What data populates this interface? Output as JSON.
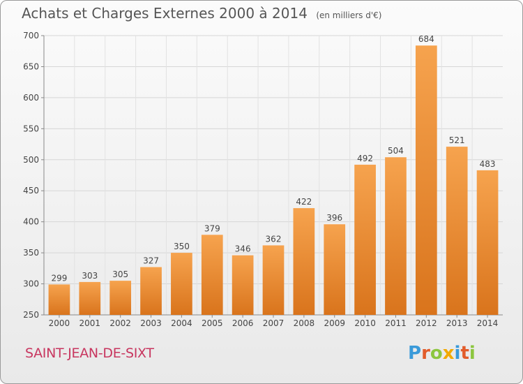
{
  "header": {
    "title": "Achats et Charges Externes 2000 à 2014",
    "unit": "(en milliers d'€)"
  },
  "footer": {
    "commune": "SAINT-JEAN-DE-SIXT",
    "logo_text": "Proxiti",
    "logo_letters": [
      {
        "ch": "P",
        "color": "#3a9ad9"
      },
      {
        "ch": "r",
        "color": "#e25c2b"
      },
      {
        "ch": "o",
        "color": "#8cc63f"
      },
      {
        "ch": "x",
        "color": "#f2a900"
      },
      {
        "ch": "i",
        "color": "#3a9ad9"
      },
      {
        "ch": "t",
        "color": "#e25c2b"
      },
      {
        "ch": "i",
        "color": "#8cc63f"
      }
    ]
  },
  "colors": {
    "bar_top": "#f6a34e",
    "bar_bottom": "#d9741c",
    "commune_text": "#c8365f"
  },
  "chart_data": {
    "type": "bar",
    "title": "Achats et Charges Externes 2000 à 2014",
    "subtitle": "(en milliers d'€)",
    "categories": [
      "2000",
      "2001",
      "2002",
      "2003",
      "2004",
      "2005",
      "2006",
      "2007",
      "2008",
      "2009",
      "2010",
      "2011",
      "2012",
      "2013",
      "2014"
    ],
    "values": [
      299,
      303,
      305,
      327,
      350,
      379,
      346,
      362,
      422,
      396,
      492,
      504,
      684,
      521,
      483
    ],
    "ylim": [
      250,
      700
    ],
    "yticks": [
      250,
      300,
      350,
      400,
      450,
      500,
      550,
      600,
      650,
      700
    ],
    "grid": true
  }
}
